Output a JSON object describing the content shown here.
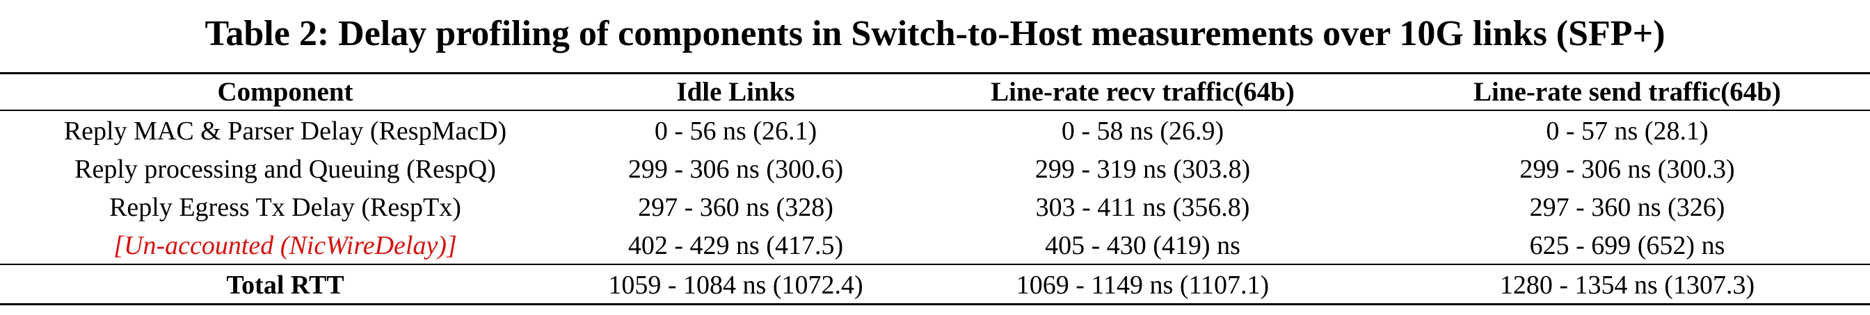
{
  "caption": "Table 2: Delay profiling of components in Switch-to-Host measurements over 10G links (SFP+)",
  "colors": {
    "text": "#000000",
    "accent": "#d4120f"
  },
  "table": {
    "headers": [
      "Component",
      "Idle Links",
      "Line-rate recv traffic(64b)",
      "Line-rate send traffic(64b)"
    ],
    "rows": [
      {
        "component": "Reply MAC & Parser Delay (RespMacD)",
        "idle": "0 - 56 ns (26.1)",
        "recv": "0 - 58 ns (26.9)",
        "send": "0 - 57 ns (28.1)"
      },
      {
        "component": "Reply processing and Queuing (RespQ)",
        "idle": "299 - 306 ns (300.6)",
        "recv": "299 - 319 ns (303.8)",
        "send": "299 - 306 ns (300.3)"
      },
      {
        "component": "Reply Egress Tx Delay (RespTx)",
        "idle": "297 - 360 ns (328)",
        "recv": "303 - 411 ns (356.8)",
        "send": "297 - 360 ns (326)"
      },
      {
        "component": "[Un-accounted (NicWireDelay)]",
        "idle": "402 - 429 ns (417.5)",
        "recv": "405 - 430 (419) ns",
        "send": "625 - 699 (652) ns"
      }
    ],
    "total": {
      "component": "Total RTT",
      "idle": "1059 - 1084 ns (1072.4)",
      "recv": "1069 - 1149 ns (1107.1)",
      "send": "1280 - 1354 ns (1307.3)"
    }
  }
}
